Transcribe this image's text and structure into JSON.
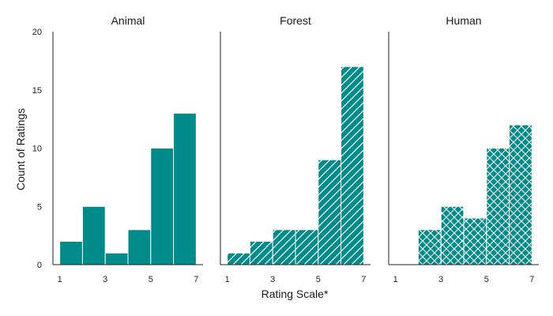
{
  "figure": {
    "ylabel": "Count of Ratings",
    "xlabel": "Rating Scale*"
  },
  "chart_data": [
    {
      "type": "bar",
      "title": "Animal",
      "x_range": [
        1,
        7
      ],
      "xticks": [
        "1",
        "3",
        "5",
        "7"
      ],
      "ylim": [
        0,
        20
      ],
      "yticks": [
        "0",
        "5",
        "10",
        "15",
        "20"
      ],
      "pattern": "solid",
      "bins": [
        {
          "from": 1.0,
          "to": 2.0,
          "count": 2
        },
        {
          "from": 2.0,
          "to": 3.0,
          "count": 5
        },
        {
          "from": 3.0,
          "to": 4.0,
          "count": 1
        },
        {
          "from": 4.0,
          "to": 5.0,
          "count": 3
        },
        {
          "from": 5.0,
          "to": 6.0,
          "count": 10
        },
        {
          "from": 6.0,
          "to": 7.0,
          "count": 13
        }
      ]
    },
    {
      "type": "bar",
      "title": "Forest",
      "x_range": [
        1,
        7
      ],
      "xticks": [
        "1",
        "3",
        "5",
        "7"
      ],
      "pattern": "diagonal-hatch",
      "bins": [
        {
          "from": 1.0,
          "to": 2.0,
          "count": 1
        },
        {
          "from": 2.0,
          "to": 3.0,
          "count": 2
        },
        {
          "from": 3.0,
          "to": 4.0,
          "count": 3
        },
        {
          "from": 4.0,
          "to": 5.0,
          "count": 3
        },
        {
          "from": 5.0,
          "to": 6.0,
          "count": 9
        },
        {
          "from": 6.0,
          "to": 7.0,
          "count": 17
        }
      ]
    },
    {
      "type": "bar",
      "title": "Human",
      "x_range": [
        1,
        7
      ],
      "xticks": [
        "1",
        "3",
        "5",
        "7"
      ],
      "pattern": "cross-hatch",
      "bins": [
        {
          "from": 2.0,
          "to": 3.0,
          "count": 3
        },
        {
          "from": 3.0,
          "to": 4.0,
          "count": 5
        },
        {
          "from": 4.0,
          "to": 5.0,
          "count": 4
        },
        {
          "from": 5.0,
          "to": 6.0,
          "count": 10
        },
        {
          "from": 6.0,
          "to": 7.0,
          "count": 12
        }
      ]
    }
  ],
  "colors": {
    "bar": "#008b8b",
    "edge": "#ffffff",
    "axis": "#222222"
  }
}
